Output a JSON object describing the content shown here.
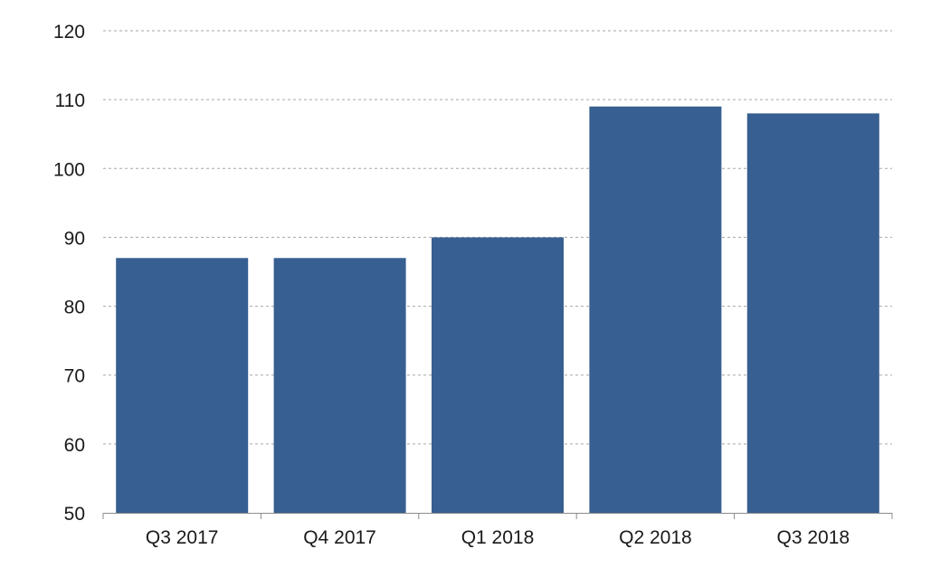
{
  "chart_data": {
    "type": "bar",
    "categories": [
      "Q3 2017",
      "Q4 2017",
      "Q1 2018",
      "Q2 2018",
      "Q3 2018"
    ],
    "values": [
      87,
      87,
      90,
      109,
      108
    ],
    "title": "",
    "xlabel": "",
    "ylabel": "",
    "ylim": [
      50,
      120
    ],
    "yticks": [
      50,
      60,
      70,
      80,
      90,
      100,
      110,
      120
    ],
    "grid": true,
    "legend": "none",
    "bar_color": "#375f91",
    "grid_color": "#a6a6a6",
    "axis_color": "#8c8c8c"
  }
}
